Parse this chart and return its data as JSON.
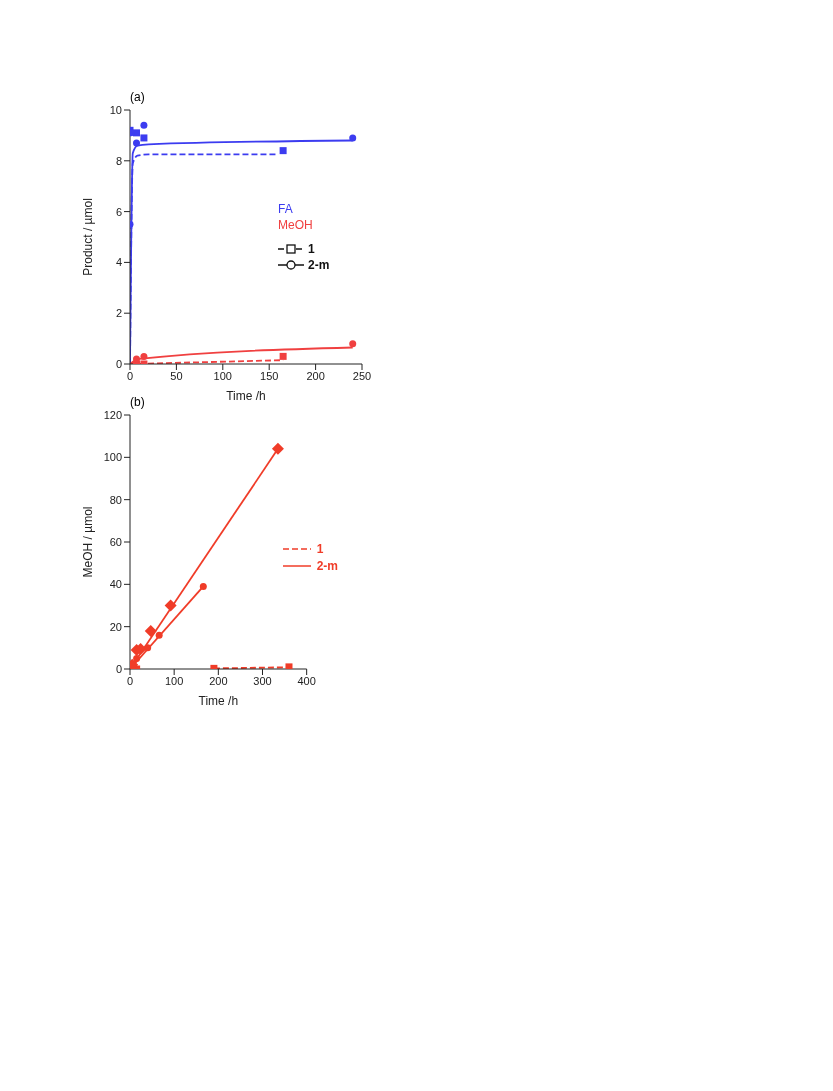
{
  "chart_data": [
    {
      "type": "scatter",
      "title": "(a)",
      "xlabel": "Time /h",
      "ylabel": "Product / µmol",
      "xlim": [
        0,
        250
      ],
      "xticks": [
        0,
        50,
        100,
        150,
        200,
        250
      ],
      "ylim": [
        0,
        10
      ],
      "yticks": [
        0,
        2,
        4,
        6,
        8,
        10
      ],
      "annotations": [
        "FA",
        "MeOH",
        "1",
        "2-m"
      ],
      "series": [
        {
          "type": "scatter",
          "marker": "square",
          "color": "#3c3cf0",
          "x": [
            0,
            7,
            15,
            165
          ],
          "values": [
            9.2,
            9.1,
            8.9,
            8.4
          ]
        },
        {
          "type": "scatter",
          "marker": "circle",
          "color": "#3c3cf0",
          "x": [
            0,
            1,
            7,
            15,
            240
          ],
          "values": [
            5.5,
            9.1,
            8.7,
            9.4,
            8.9
          ]
        },
        {
          "type": "line",
          "line_style": "dashed",
          "color": "#3c3cf0",
          "x": [
            0,
            3,
            8,
            20,
            160
          ],
          "values": [
            0,
            7.9,
            8.2,
            8.25,
            8.25
          ]
        },
        {
          "type": "line",
          "line_style": "solid",
          "color": "#3c3cf0",
          "x": [
            0,
            3,
            8,
            20,
            240
          ],
          "values": [
            0,
            8.3,
            8.6,
            8.65,
            8.8
          ]
        },
        {
          "type": "scatter",
          "marker": "square",
          "color": "#f04040",
          "x": [
            7,
            15,
            165
          ],
          "values": [
            0,
            0,
            0.3
          ]
        },
        {
          "marker": "circle",
          "color": "#f04040",
          "x": [
            7,
            15,
            240
          ],
          "values": [
            0.2,
            0.3,
            0.8
          ]
        },
        {
          "type": "line",
          "line_style": "dashed",
          "color": "#f04040",
          "x": [
            0,
            165
          ],
          "values": [
            0,
            0.15
          ]
        },
        {
          "type": "line",
          "line_style": "solid",
          "color": "#f04040",
          "x": [
            0,
            10,
            240
          ],
          "values": [
            0,
            0.2,
            0.65
          ]
        }
      ]
    },
    {
      "type": "scatter",
      "title": "(b)",
      "xlabel": "Time /h",
      "ylabel": "MeOH  / µmol",
      "xlim": [
        0,
        400
      ],
      "xticks": [
        0,
        100,
        200,
        300,
        400
      ],
      "ylim": [
        0,
        120
      ],
      "yticks": [
        0,
        20,
        40,
        60,
        80,
        100,
        120
      ],
      "legend": "right",
      "series": [
        {
          "type": "scatter",
          "marker": "square",
          "color": "#f03c28",
          "x": [
            15,
            190,
            360
          ],
          "values": [
            0,
            0.3,
            1
          ]
        },
        {
          "type": "line",
          "name": "1",
          "line_style": "dashed",
          "color": "#f03c28",
          "x": [
            190,
            360
          ],
          "values": [
            0.3,
            0.8
          ]
        },
        {
          "type": "scatter",
          "marker": "diamond",
          "color": "#f03c28",
          "x": [
            5,
            15,
            24,
            47,
            92,
            335
          ],
          "values": [
            2,
            9,
            9.5,
            18,
            30,
            104
          ]
        },
        {
          "type": "line",
          "name": "2-m",
          "line_style": "solid",
          "color": "#f03c28",
          "x": [
            0,
            335
          ],
          "values": [
            0,
            104
          ]
        },
        {
          "marker": "circle",
          "color": "#f03c28",
          "x": [
            15,
            40,
            66,
            166
          ],
          "values": [
            5,
            10,
            16,
            39
          ]
        },
        {
          "type": "line",
          "line_style": "solid",
          "color": "#f03c28",
          "x": [
            0,
            166
          ],
          "values": [
            0,
            39
          ]
        }
      ]
    }
  ]
}
